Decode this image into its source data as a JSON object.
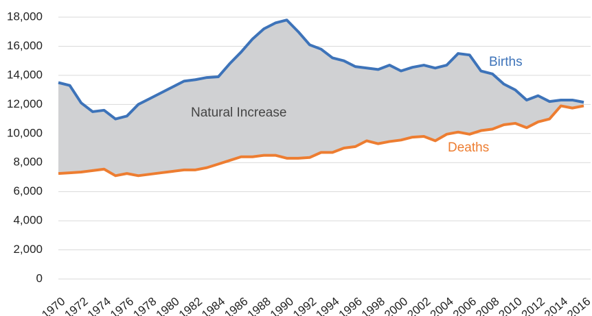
{
  "chart_data": {
    "type": "line",
    "x": [
      1970,
      1971,
      1972,
      1973,
      1974,
      1975,
      1976,
      1977,
      1978,
      1979,
      1980,
      1981,
      1982,
      1983,
      1984,
      1985,
      1986,
      1987,
      1988,
      1989,
      1990,
      1991,
      1992,
      1993,
      1994,
      1995,
      1996,
      1997,
      1998,
      1999,
      2000,
      2001,
      2002,
      2003,
      2004,
      2005,
      2006,
      2007,
      2008,
      2009,
      2010,
      2011,
      2012,
      2013,
      2014,
      2015,
      2016
    ],
    "series": [
      {
        "name": "Births",
        "color": "#3d73b9",
        "values": [
          13500,
          13300,
          12100,
          11500,
          11600,
          11000,
          11200,
          12000,
          12400,
          12800,
          13200,
          13600,
          13700,
          13850,
          13900,
          14800,
          15600,
          16500,
          17200,
          17600,
          17800,
          17000,
          16100,
          15800,
          15200,
          15000,
          14600,
          14500,
          14400,
          14700,
          14300,
          14550,
          14700,
          14500,
          14700,
          15500,
          15400,
          14300,
          14100,
          13400,
          13000,
          12300,
          12600,
          12200,
          12300,
          12300,
          12150
        ]
      },
      {
        "name": "Deaths",
        "color": "#ed7d31",
        "values": [
          7250,
          7300,
          7350,
          7450,
          7550,
          7100,
          7250,
          7100,
          7200,
          7300,
          7400,
          7500,
          7500,
          7650,
          7900,
          8150,
          8400,
          8400,
          8500,
          8500,
          8300,
          8300,
          8350,
          8700,
          8700,
          9000,
          9100,
          9500,
          9300,
          9450,
          9550,
          9750,
          9800,
          9500,
          9950,
          10100,
          9950,
          10200,
          10300,
          10600,
          10700,
          10400,
          10800,
          11000,
          11900,
          11750,
          11900
        ]
      }
    ],
    "area_label": "Natural Increase",
    "area_color": "#d0d1d3",
    "xlim": [
      1970,
      2016
    ],
    "xticks": [
      1970,
      1972,
      1974,
      1976,
      1978,
      1980,
      1982,
      1984,
      1986,
      1988,
      1990,
      1992,
      1994,
      1996,
      1998,
      2000,
      2002,
      2004,
      2006,
      2008,
      2010,
      2012,
      2014,
      2016
    ],
    "ylim": [
      0,
      18000
    ],
    "yticks": [
      0,
      {
        "value": 2000,
        "label": "2,000"
      },
      {
        "value": 4000,
        "label": "4,000"
      },
      {
        "value": 6000,
        "label": "6,000"
      },
      {
        "value": 8000,
        "label": "8,000"
      },
      {
        "value": 10000,
        "label": "10,000"
      },
      {
        "value": 12000,
        "label": "12,000"
      },
      {
        "value": 14000,
        "label": "14,000"
      },
      {
        "value": 16000,
        "label": "16,000"
      },
      {
        "value": 18000,
        "label": "18,000"
      }
    ],
    "grid": true
  }
}
